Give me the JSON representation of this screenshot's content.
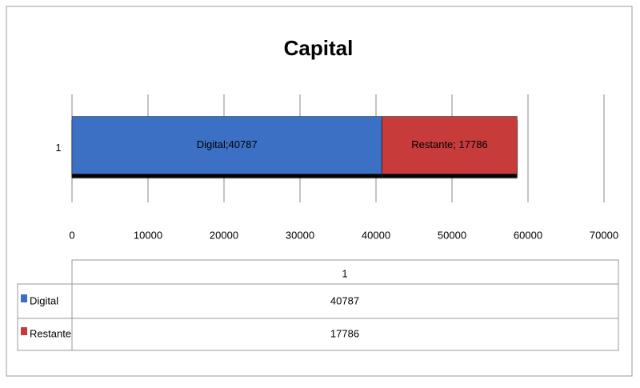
{
  "chart_data": {
    "type": "stacked-bar-horizontal",
    "title": "Capital",
    "categories": [
      "1"
    ],
    "series": [
      {
        "name": "Digital",
        "color": "#3a6fc4",
        "values": [
          40787
        ],
        "value_labels": [
          "Digital;40787"
        ]
      },
      {
        "name": "Restante",
        "color": "#c83a3a",
        "values": [
          17786
        ],
        "value_labels": [
          "Restante; 17786"
        ]
      }
    ],
    "xlim": [
      0,
      70000
    ],
    "xticks": [
      0,
      10000,
      20000,
      30000,
      40000,
      50000,
      60000,
      70000
    ],
    "grid": true,
    "data_table": true
  }
}
